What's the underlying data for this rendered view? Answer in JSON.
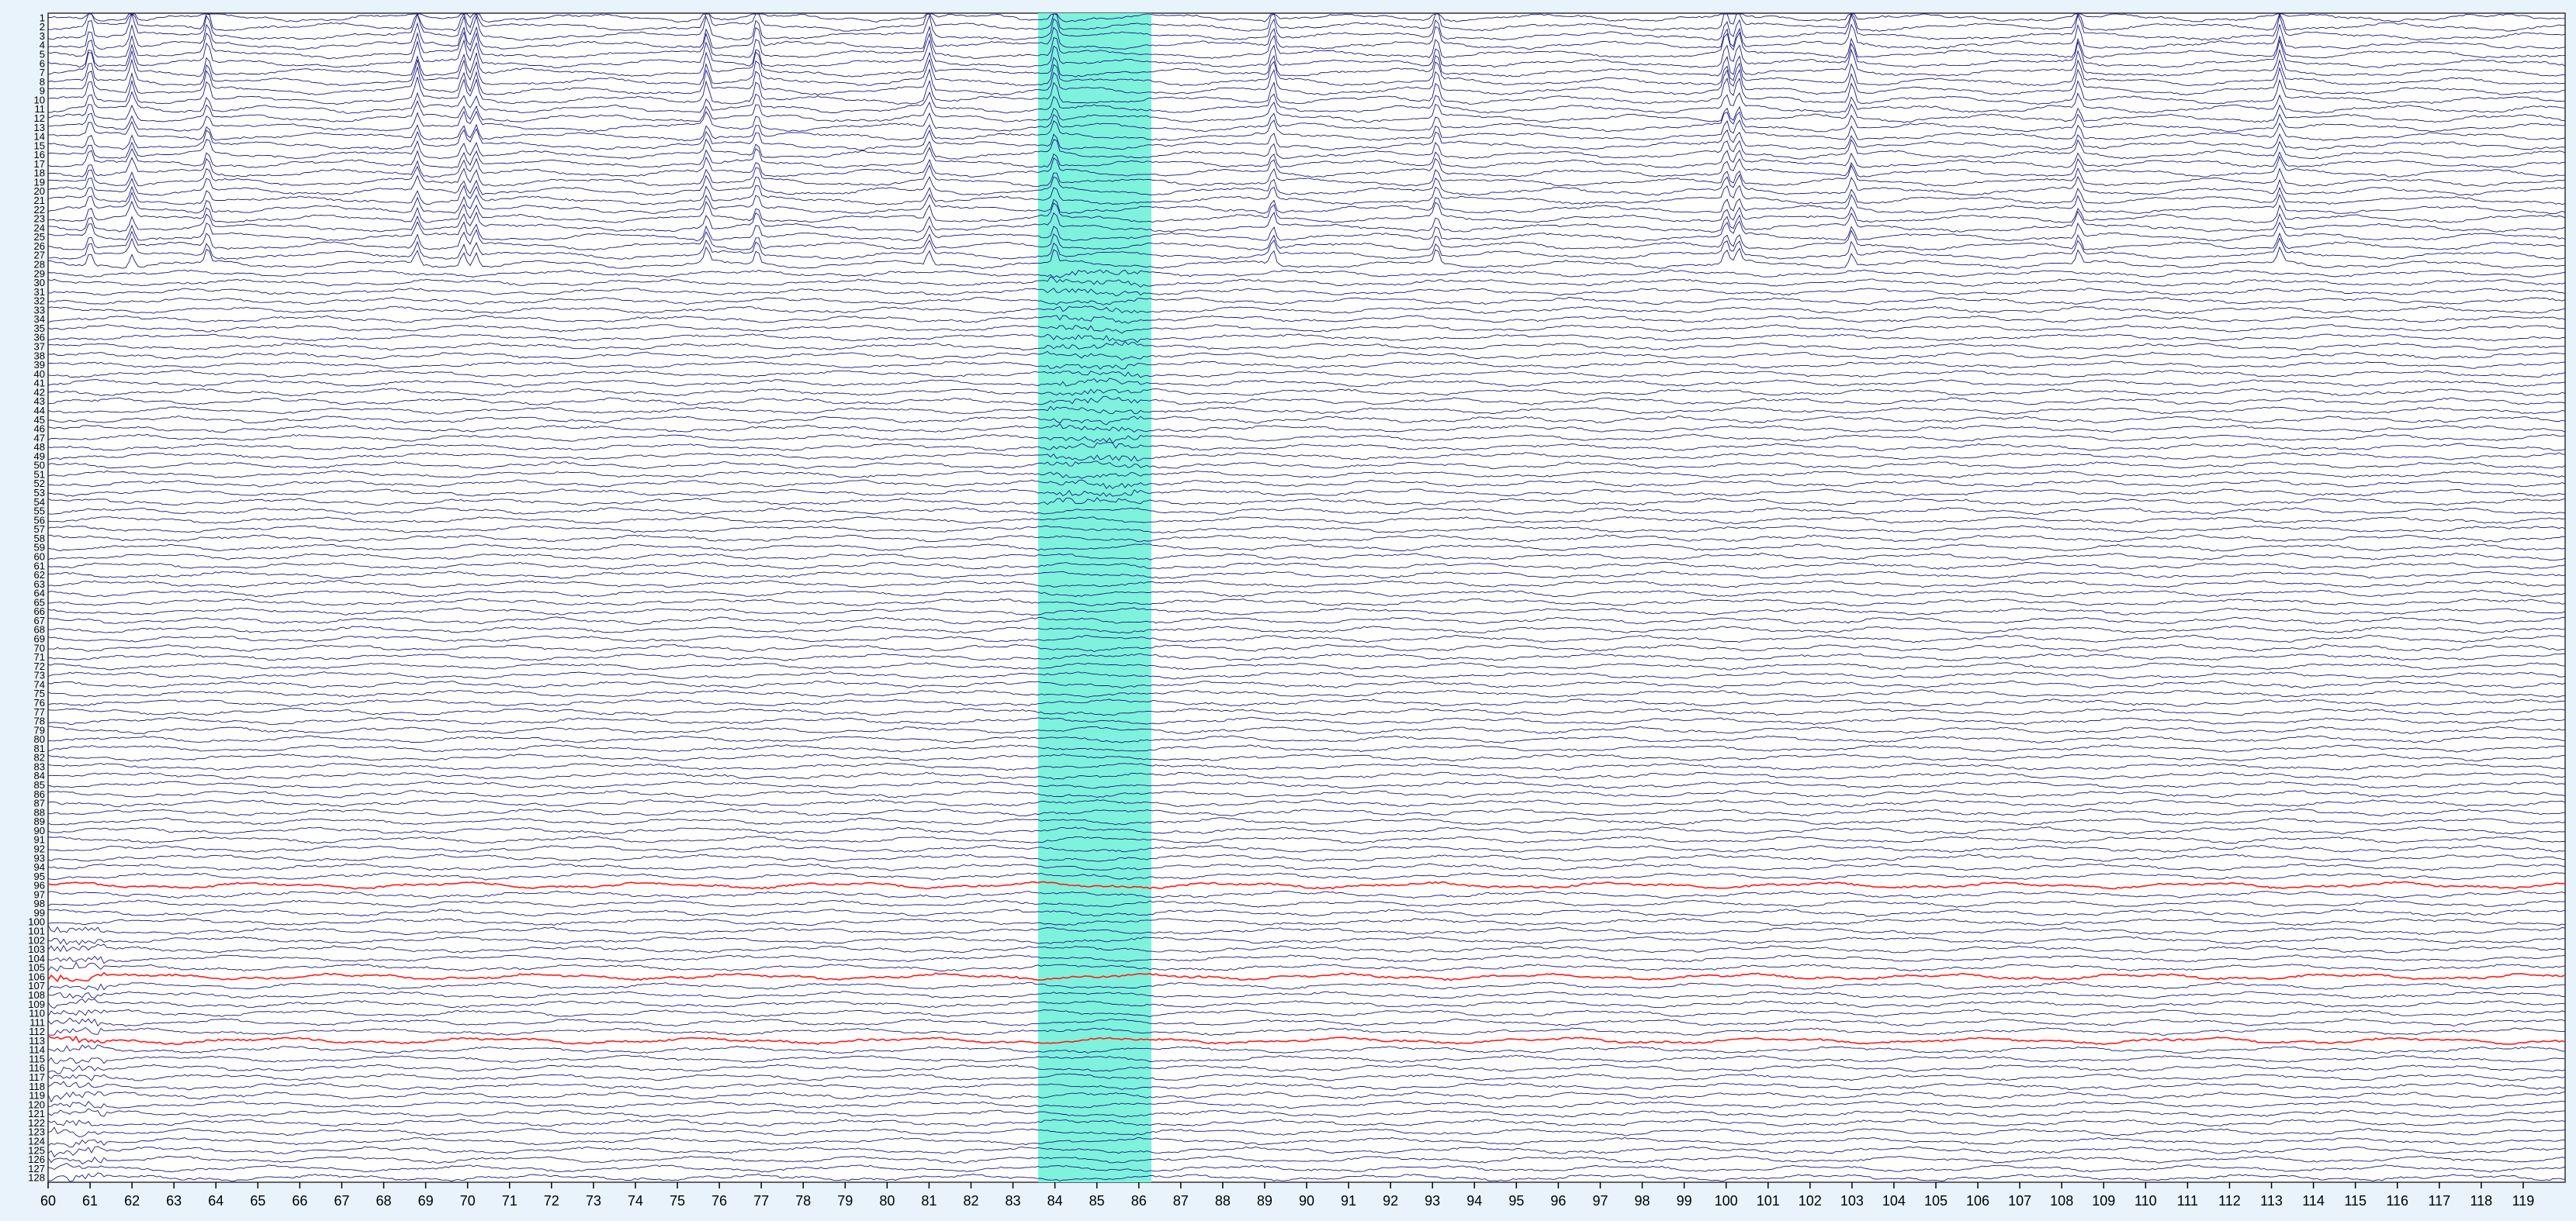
{
  "viewer": {
    "colors": {
      "background": "#e9f3fb",
      "plot_background": "#ffffff",
      "trace": "#1a1a80",
      "highlight_trace": "#ff1a1a",
      "selection": "#7ef2dc"
    },
    "channel_count": 128,
    "channel_labels": [
      "1",
      "2",
      "3",
      "4",
      "5",
      "6",
      "7",
      "8",
      "9",
      "10",
      "11",
      "12",
      "13",
      "14",
      "15",
      "16",
      "17",
      "18",
      "19",
      "20",
      "21",
      "22",
      "23",
      "24",
      "25",
      "26",
      "27",
      "28",
      "29",
      "30",
      "31",
      "32",
      "33",
      "34",
      "35",
      "36",
      "37",
      "38",
      "39",
      "40",
      "41",
      "42",
      "43",
      "44",
      "45",
      "46",
      "47",
      "48",
      "49",
      "50",
      "51",
      "52",
      "53",
      "54",
      "55",
      "56",
      "57",
      "58",
      "59",
      "60",
      "61",
      "62",
      "63",
      "64",
      "65",
      "66",
      "67",
      "68",
      "69",
      "70",
      "71",
      "72",
      "73",
      "74",
      "75",
      "76",
      "77",
      "78",
      "79",
      "80",
      "81",
      "82",
      "83",
      "84",
      "85",
      "86",
      "87",
      "88",
      "89",
      "90",
      "91",
      "92",
      "93",
      "94",
      "95",
      "96",
      "97",
      "98",
      "99",
      "100",
      "101",
      "102",
      "103",
      "104",
      "105",
      "106",
      "107",
      "108",
      "109",
      "110",
      "111",
      "112",
      "113",
      "114",
      "115",
      "116",
      "117",
      "118",
      "119",
      "120",
      "121",
      "122",
      "123",
      "124",
      "125",
      "126",
      "127",
      "128"
    ],
    "time_axis": {
      "start": 60,
      "end": 120,
      "labels": [
        "60",
        "61",
        "62",
        "63",
        "64",
        "65",
        "66",
        "67",
        "68",
        "69",
        "70",
        "71",
        "72",
        "73",
        "74",
        "75",
        "76",
        "77",
        "78",
        "79",
        "80",
        "81",
        "82",
        "83",
        "84",
        "85",
        "86",
        "87",
        "88",
        "89",
        "90",
        "91",
        "92",
        "93",
        "94",
        "95",
        "96",
        "97",
        "98",
        "99",
        "100",
        "101",
        "102",
        "103",
        "104",
        "105",
        "106",
        "107",
        "108",
        "109",
        "110",
        "111",
        "112",
        "113",
        "114",
        "115",
        "116",
        "117",
        "118",
        "119"
      ]
    },
    "selection": {
      "start": 83.6,
      "end": 86.3
    },
    "highlighted_channels": [
      96,
      106,
      113
    ],
    "artifact_times": [
      61,
      62,
      63.8,
      68.8,
      69.9,
      70.2,
      75.7,
      76.9,
      81.0,
      84.0,
      89.2,
      93.1,
      100.0,
      100.3,
      103.0,
      108.4,
      113.2
    ]
  }
}
